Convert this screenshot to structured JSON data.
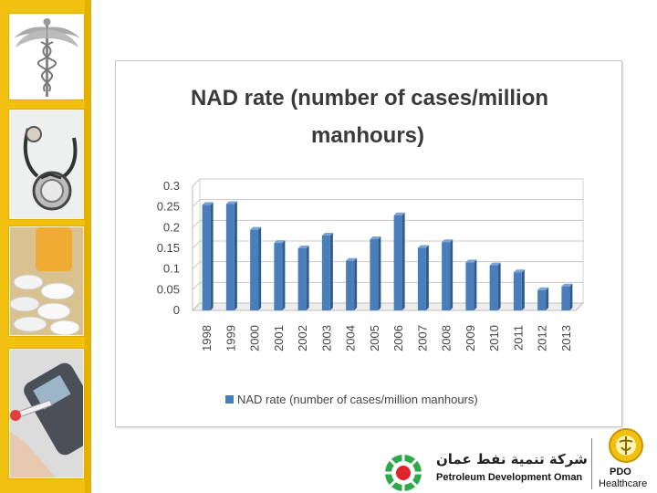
{
  "chart_data": {
    "type": "bar",
    "title_lines": [
      "NAD rate (number of cases/million",
      "manhours)"
    ],
    "categories": [
      "1998",
      "1999",
      "2000",
      "2001",
      "2002",
      "2003",
      "2004",
      "2005",
      "2006",
      "2007",
      "2008",
      "2009",
      "2010",
      "2011",
      "2012",
      "2013"
    ],
    "values": [
      0.255,
      0.257,
      0.195,
      0.163,
      0.15,
      0.181,
      0.12,
      0.172,
      0.23,
      0.151,
      0.165,
      0.116,
      0.109,
      0.092,
      0.049,
      0.058
    ],
    "yticks": [
      "0",
      "0.05",
      "0.1",
      "0.15",
      "0.2",
      "0.25",
      "0.3"
    ],
    "ylim": [
      0,
      0.3
    ],
    "legend": "NAD rate (number of cases/million manhours)",
    "legend_position": "bottom",
    "bar_color": "#4a7ebb",
    "grid": true
  },
  "branding": {
    "arabic_name": "شركة تنمية نفط عمان",
    "company_name": "Petroleum Development Oman",
    "short_name": "PDO",
    "division": "Healthcare"
  }
}
